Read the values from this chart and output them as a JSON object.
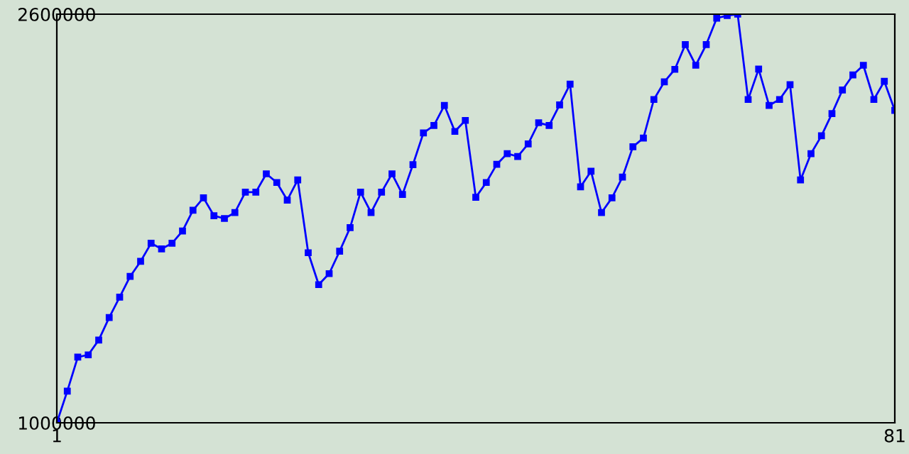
{
  "chart_data": {
    "type": "line",
    "x": [
      1,
      2,
      3,
      4,
      5,
      6,
      7,
      8,
      9,
      10,
      11,
      12,
      13,
      14,
      15,
      16,
      17,
      18,
      19,
      20,
      21,
      22,
      23,
      24,
      25,
      26,
      27,
      28,
      29,
      30,
      31,
      32,
      33,
      34,
      35,
      36,
      37,
      38,
      39,
      40,
      41,
      42,
      43,
      44,
      45,
      46,
      47,
      48,
      49,
      50,
      51,
      52,
      53,
      54,
      55,
      56,
      57,
      58,
      59,
      60,
      61,
      62,
      63,
      64,
      65,
      66,
      67,
      68,
      69,
      70,
      71,
      72,
      73,
      74,
      75,
      76,
      77,
      78,
      79,
      80,
      81
    ],
    "series": [
      {
        "color": "#0000ff",
        "values": [
          1000000,
          1124000,
          1257000,
          1266000,
          1324000,
          1412000,
          1492000,
          1573000,
          1632000,
          1703000,
          1681000,
          1703000,
          1751000,
          1832000,
          1881000,
          1811000,
          1800000,
          1823000,
          1903000,
          1903000,
          1975000,
          1941000,
          1872000,
          1951000,
          1666000,
          1541000,
          1584000,
          1672000,
          1764000,
          1903000,
          1823000,
          1903000,
          1975000,
          1894000,
          2011000,
          2135000,
          2164000,
          2243000,
          2141000,
          2184000,
          1883000,
          1941000,
          2012000,
          2054000,
          2043000,
          2092000,
          2175000,
          2164000,
          2245000,
          2326000,
          1924000,
          1985000,
          1823000,
          1881000,
          1962000,
          2081000,
          2115000,
          2266000,
          2335000,
          2384000,
          2481000,
          2400000,
          2481000,
          2584000,
          2595000,
          2600000,
          2266000,
          2385000,
          2243000,
          2266000,
          2324000,
          1951000,
          2054000,
          2124000,
          2211000,
          2303000,
          2362000,
          2400000,
          2266000,
          2337000,
          2223000
        ]
      }
    ],
    "xlim": [
      1,
      81
    ],
    "xticks": [
      1,
      81
    ],
    "ylim": [
      1000000,
      2600000
    ],
    "yticks": [
      1000000,
      2600000
    ],
    "marker": "square",
    "line_style": "solid",
    "grid": false,
    "legend": false
  }
}
